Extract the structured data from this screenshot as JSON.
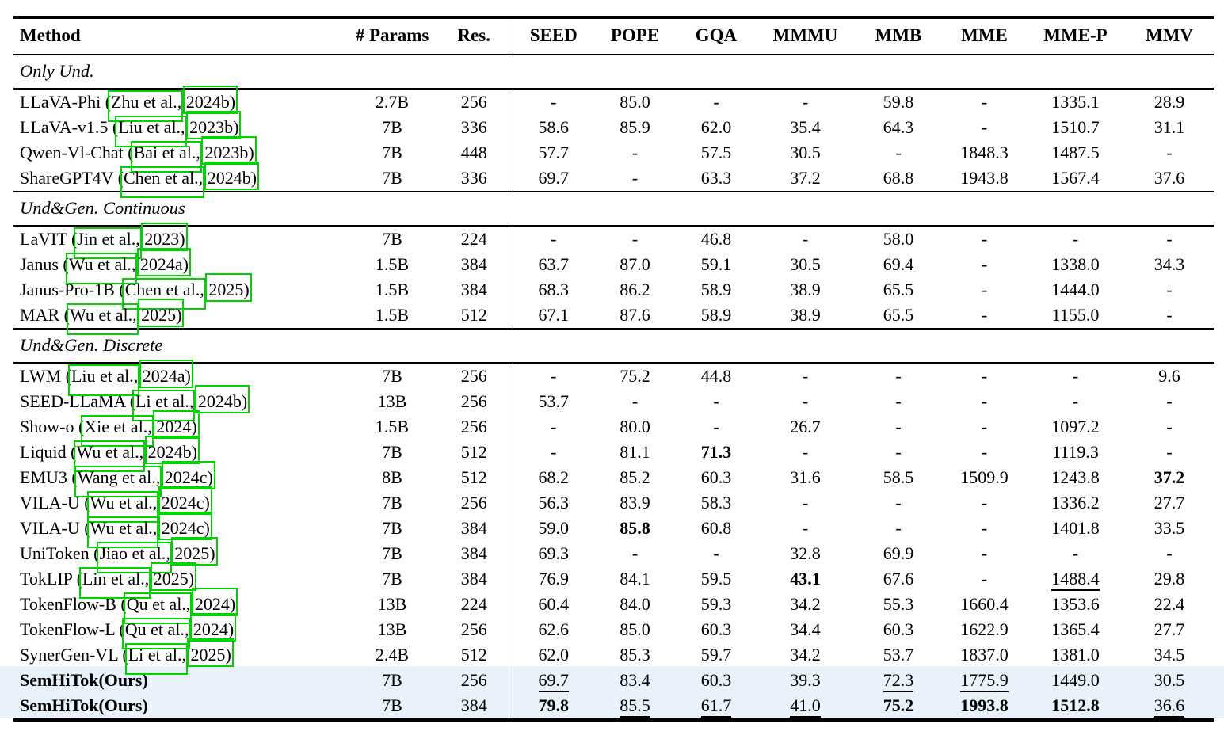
{
  "colors": {
    "highlight_row": "#e9f2fb",
    "citation_box": "#00d400",
    "rule": "#000000"
  },
  "table": {
    "columns": [
      "Method",
      "# Params",
      "Res.",
      "SEED",
      "POPE",
      "GQA",
      "MMMU",
      "MMB",
      "MME",
      "MME-P",
      "MMV"
    ],
    "sections": [
      {
        "label": "Only Und.",
        "rows": [
          {
            "method": "LLaVA-Phi",
            "cite_author": "Zhu et al.,",
            "cite_year": "2024b)",
            "params": "2.7B",
            "res": "256",
            "values": [
              "-",
              "85.0",
              "-",
              "-",
              "59.8",
              "-",
              "1335.1",
              "28.9"
            ]
          },
          {
            "method": "LLaVA-v1.5",
            "cite_author": "Liu et al.,",
            "cite_year": "2023b)",
            "params": "7B",
            "res": "336",
            "values": [
              "58.6",
              "85.9",
              "62.0",
              "35.4",
              "64.3",
              "-",
              "1510.7",
              "31.1"
            ]
          },
          {
            "method": "Qwen-Vl-Chat",
            "cite_author": "Bai et al.,",
            "cite_year": "2023b)",
            "params": "7B",
            "res": "448",
            "values": [
              "57.7",
              "-",
              "57.5",
              "30.5",
              "-",
              "1848.3",
              "1487.5",
              "-"
            ]
          },
          {
            "method": "ShareGPT4V",
            "cite_author": "Chen et al.,",
            "cite_year": "2024b)",
            "params": "7B",
            "res": "336",
            "values": [
              "69.7",
              "-",
              "63.3",
              "37.2",
              "68.8",
              "1943.8",
              "1567.4",
              "37.6"
            ]
          }
        ]
      },
      {
        "label": "Und&Gen. Continuous",
        "rows": [
          {
            "method": "LaVIT",
            "cite_author": "Jin et al.,",
            "cite_year": "2023)",
            "params": "7B",
            "res": "224",
            "values": [
              "-",
              "-",
              "46.8",
              "-",
              "58.0",
              "-",
              "-",
              "-"
            ]
          },
          {
            "method": "Janus",
            "cite_author": "Wu et al.,",
            "cite_year": "2024a)",
            "params": "1.5B",
            "res": "384",
            "values": [
              "63.7",
              "87.0",
              "59.1",
              "30.5",
              "69.4",
              "-",
              "1338.0",
              "34.3"
            ]
          },
          {
            "method": "Janus-Pro-1B",
            "cite_author": "Chen et al.,",
            "cite_year": "2025)",
            "params": "1.5B",
            "res": "384",
            "values": [
              "68.3",
              "86.2",
              "58.9",
              "38.9",
              "65.5",
              "-",
              "1444.0",
              "-"
            ]
          },
          {
            "method": "MAR",
            "cite_author": "Wu et al.,",
            "cite_year": "2025)",
            "params": "1.5B",
            "res": "512",
            "values": [
              "67.1",
              "87.6",
              "58.9",
              "38.9",
              "65.5",
              "-",
              "1155.0",
              "-"
            ]
          }
        ]
      },
      {
        "label": "Und&Gen. Discrete",
        "rows": [
          {
            "method": "LWM",
            "cite_author": "Liu et al.,",
            "cite_year": "2024a)",
            "params": "7B",
            "res": "256",
            "values": [
              "-",
              "75.2",
              "44.8",
              "-",
              "-",
              "-",
              "-",
              "9.6"
            ]
          },
          {
            "method": "SEED-LLaMA",
            "cite_author": "Li et al.,",
            "cite_year": "2024b)",
            "params": "13B",
            "res": "256",
            "values": [
              "53.7",
              "-",
              "-",
              "-",
              "-",
              "-",
              "-",
              "-"
            ]
          },
          {
            "method": "Show-o",
            "cite_author": "Xie et al.,",
            "cite_year": "2024)",
            "params": "1.5B",
            "res": "256",
            "values": [
              "-",
              "80.0",
              "-",
              "26.7",
              "-",
              "-",
              "1097.2",
              "-"
            ]
          },
          {
            "method": "Liquid",
            "cite_author": "Wu et al.,",
            "cite_year": "2024b)",
            "params": "7B",
            "res": "512",
            "values": [
              "-",
              "81.1",
              {
                "t": "71.3",
                "s": "b"
              },
              "-",
              "-",
              "-",
              "1119.3",
              "-"
            ]
          },
          {
            "method": "EMU3",
            "cite_author": "Wang et al.,",
            "cite_year": "2024c)",
            "params": "8B",
            "res": "512",
            "values": [
              "68.2",
              "85.2",
              "60.3",
              "31.6",
              "58.5",
              "1509.9",
              "1243.8",
              {
                "t": "37.2",
                "s": "b"
              }
            ]
          },
          {
            "method": "VILA-U",
            "cite_author": "Wu et al.,",
            "cite_year": "2024c)",
            "params": "7B",
            "res": "256",
            "values": [
              "56.3",
              "83.9",
              "58.3",
              "-",
              "-",
              "-",
              "1336.2",
              "27.7"
            ]
          },
          {
            "method": "VILA-U",
            "cite_author": "Wu et al.,",
            "cite_year": "2024c)",
            "params": "7B",
            "res": "384",
            "values": [
              "59.0",
              {
                "t": "85.8",
                "s": "b"
              },
              "60.8",
              "-",
              "-",
              "-",
              "1401.8",
              "33.5"
            ]
          },
          {
            "method": "UniToken",
            "cite_author": "Jiao et al.,",
            "cite_year": "2025)",
            "params": "7B",
            "res": "384",
            "values": [
              "69.3",
              "-",
              "-",
              "32.8",
              "69.9",
              "-",
              "-",
              "-"
            ]
          },
          {
            "method": "TokLIP",
            "cite_author": "Lin et al.,",
            "cite_year": "2025)",
            "params": "7B",
            "res": "384",
            "values": [
              "76.9",
              "84.1",
              "59.5",
              {
                "t": "43.1",
                "s": "b"
              },
              "67.6",
              "-",
              {
                "t": "1488.4",
                "s": "u"
              },
              "29.8"
            ]
          },
          {
            "method": "TokenFlow-B",
            "cite_author": "Qu et al.,",
            "cite_year": "2024)",
            "params": "13B",
            "res": "224",
            "values": [
              "60.4",
              "84.0",
              "59.3",
              "34.2",
              "55.3",
              "1660.4",
              "1353.6",
              "22.4"
            ]
          },
          {
            "method": "TokenFlow-L",
            "cite_author": "Qu et al.,",
            "cite_year": "2024)",
            "params": "13B",
            "res": "256",
            "values": [
              "62.6",
              "85.0",
              "60.3",
              "34.4",
              "60.3",
              "1622.9",
              "1365.4",
              "27.7"
            ]
          },
          {
            "method": "SynerGen-VL",
            "cite_author": "Li et al.,",
            "cite_year": "2025)",
            "params": "2.4B",
            "res": "512",
            "values": [
              "62.0",
              "85.3",
              "59.7",
              "34.2",
              "53.7",
              "1837.0",
              "1381.0",
              "34.5"
            ]
          },
          {
            "method": "SemHiTok(Ours)",
            "cite_author": null,
            "cite_year": null,
            "params": "7B",
            "res": "256",
            "method_bold": true,
            "highlight": true,
            "values": [
              {
                "t": "69.7",
                "s": "u"
              },
              "83.4",
              "60.3",
              "39.3",
              {
                "t": "72.3",
                "s": "u"
              },
              {
                "t": "1775.9",
                "s": "u"
              },
              "1449.0",
              "30.5"
            ]
          },
          {
            "method": "SemHiTok(Ours)",
            "cite_author": null,
            "cite_year": null,
            "params": "7B",
            "res": "384",
            "method_bold": true,
            "highlight": true,
            "values": [
              {
                "t": "79.8",
                "s": "b"
              },
              {
                "t": "85.5",
                "s": "u"
              },
              {
                "t": "61.7",
                "s": "u"
              },
              {
                "t": "41.0",
                "s": "u"
              },
              {
                "t": "75.2",
                "s": "b"
              },
              {
                "t": "1993.8",
                "s": "b"
              },
              {
                "t": "1512.8",
                "s": "b"
              },
              {
                "t": "36.6",
                "s": "u"
              }
            ]
          }
        ]
      }
    ]
  }
}
